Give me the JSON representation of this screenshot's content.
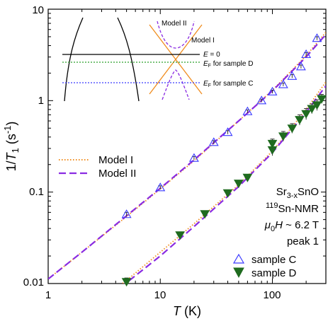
{
  "chart_data": {
    "type": "scatter",
    "scale": {
      "x": "log",
      "y": "log"
    },
    "xlim": [
      1,
      300
    ],
    "ylim": [
      0.01,
      10
    ],
    "x_ticks": [
      "1",
      "10",
      "100"
    ],
    "y_ticks": [
      "0.01",
      "0.1",
      "1",
      "10"
    ],
    "xlabel": {
      "sym": "T",
      "rest": " (K)"
    },
    "ylabel": {
      "pre": "1/",
      "sym": "T",
      "sub": "1",
      "rest": " (s",
      "sup": "-1",
      "end": ")"
    },
    "annotation": {
      "l1": {
        "a": "Sr",
        "sub": "3-x",
        "b": "SnO"
      },
      "l2": {
        "sup": "119",
        "b": "Sn-NMR"
      },
      "l3": {
        "mu": "μ",
        "sub0": "0",
        "h": "H",
        "rest": " ~ 6.2 T"
      },
      "l4": "peak 1"
    },
    "legend_upper": {
      "position": "left",
      "entries": [
        {
          "label": "Model I",
          "color": "#f08c1e",
          "style": "dotted"
        },
        {
          "label": "Model II",
          "color": "#8a2be2",
          "style": "dashed"
        }
      ]
    },
    "legend_lower": {
      "position": "bottom-right",
      "entries": [
        {
          "label": "sample C",
          "color": "#3b3bff",
          "marker": "open-triangle-up"
        },
        {
          "label": "sample D",
          "color": "#1f6b1f",
          "marker": "filled-triangle-down"
        }
      ]
    },
    "inset": {
      "labels": {
        "model2": "Model II",
        "model1": "Model I",
        "e0_pre": "E",
        "e0_rest": " = 0",
        "efD_pre": "E",
        "efD_sub": "F",
        "efD_rest": " for sample D",
        "efC_pre": "E",
        "efC_sub": "F",
        "efC_rest": " for sample C"
      },
      "colors": {
        "model1": "#f08c1e",
        "model2": "#8a2be2",
        "efD": "#2ca02c",
        "efC": "#3b3bff",
        "e0": "#000000"
      }
    },
    "series": [
      {
        "name": "sample C",
        "marker": "open-triangle-up",
        "color": "#3b3bff",
        "points": [
          [
            5,
            0.057
          ],
          [
            10,
            0.112
          ],
          [
            20,
            0.235
          ],
          [
            30,
            0.35
          ],
          [
            40,
            0.45
          ],
          [
            60,
            0.76
          ],
          [
            80,
            1.0
          ],
          [
            100,
            1.25
          ],
          [
            125,
            1.5
          ],
          [
            150,
            1.85
          ],
          [
            180,
            2.35
          ],
          [
            200,
            3.2
          ],
          [
            250,
            4.8
          ]
        ],
        "yerr": [
          0.003,
          0.005,
          0.01,
          0.015,
          0.02,
          0.03,
          0.04,
          0.05,
          0.06,
          0.08,
          0.1,
          0.15,
          0.2
        ]
      },
      {
        "name": "sample D",
        "marker": "filled-triangle-down",
        "color": "#1f6b1f",
        "points": [
          [
            5,
            0.0105
          ],
          [
            15,
            0.034
          ],
          [
            25,
            0.058
          ],
          [
            40,
            0.098
          ],
          [
            50,
            0.125
          ],
          [
            60,
            0.145
          ],
          [
            100,
            0.29
          ],
          [
            100,
            0.34
          ],
          [
            125,
            0.41
          ],
          [
            150,
            0.5
          ],
          [
            175,
            0.62
          ],
          [
            200,
            0.72
          ],
          [
            225,
            0.82
          ],
          [
            250,
            0.9
          ],
          [
            275,
            1.05
          ]
        ],
        "yerr": [
          0.001,
          0.002,
          0.004,
          0.006,
          0.008,
          0.01,
          0.04,
          0.04,
          0.05,
          0.06,
          0.08,
          0.1,
          0.1,
          0.12,
          0.12
        ]
      }
    ],
    "model_curves": [
      {
        "label": "Model I (sample C)",
        "color": "#f08c1e",
        "style": "dotted",
        "x": [
          1,
          2,
          5,
          10,
          20,
          50,
          100,
          200,
          300
        ],
        "y": [
          0.0112,
          0.022,
          0.054,
          0.108,
          0.22,
          0.6,
          1.3,
          3.1,
          5.6
        ]
      },
      {
        "label": "Model II (sample C)",
        "color": "#8a2be2",
        "style": "dashed",
        "x": [
          1,
          2,
          5,
          10,
          20,
          50,
          100,
          200,
          300
        ],
        "y": [
          0.0112,
          0.022,
          0.055,
          0.11,
          0.225,
          0.6,
          1.28,
          3.0,
          5.3
        ]
      },
      {
        "label": "Model I (sample D)",
        "color": "#f08c1e",
        "style": "dotted",
        "x": [
          4.2,
          5,
          10,
          20,
          50,
          100,
          200,
          300
        ],
        "y": [
          0.0092,
          0.0108,
          0.022,
          0.045,
          0.12,
          0.28,
          0.8,
          1.6
        ]
      },
      {
        "label": "Model II (sample D)",
        "color": "#8a2be2",
        "style": "dashed",
        "x": [
          4.4,
          5,
          10,
          20,
          50,
          100,
          200,
          300
        ],
        "y": [
          0.0092,
          0.0102,
          0.02,
          0.042,
          0.115,
          0.27,
          0.75,
          1.45
        ]
      }
    ]
  }
}
